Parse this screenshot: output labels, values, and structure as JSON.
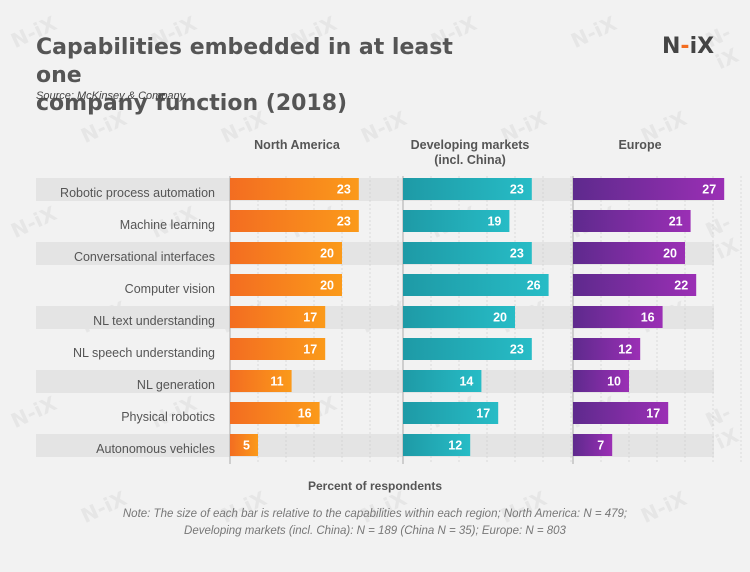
{
  "header": {
    "title_line1": "Capabilities embedded in at least one",
    "title_line2": "company function (2018)",
    "source": "Source: McKinsey & Company",
    "logo_left": "N",
    "logo_dash": "-",
    "logo_right": "iX"
  },
  "watermark_text": "N-iX",
  "colors": {
    "north_america": [
      "#f36d21",
      "#fb9a1a"
    ],
    "developing": [
      "#1e9aa6",
      "#27bcc6"
    ],
    "europe": [
      "#5e2a8d",
      "#9b2fb5"
    ],
    "row_band": "#e4e4e4",
    "grid": "#c8c8c8"
  },
  "chart_data": {
    "type": "bar",
    "title": "Capabilities embedded in at least one company function (2018)",
    "xlabel": "Percent of respondents",
    "categories": [
      "Robotic process automation",
      "Machine learning",
      "Conversational interfaces",
      "Computer vision",
      "NL text understanding",
      "NL speech understanding",
      "NL generation",
      "Physical robotics",
      "Autonomous vehicles"
    ],
    "series": [
      {
        "name": "North America",
        "values": [
          23,
          23,
          20,
          20,
          17,
          17,
          11,
          16,
          5
        ]
      },
      {
        "name": "Developing markets (incl. China)",
        "name_lines": [
          "Developing markets",
          "(incl. China)"
        ],
        "values": [
          23,
          19,
          23,
          26,
          20,
          23,
          14,
          17,
          12
        ]
      },
      {
        "name": "Europe",
        "values": [
          27,
          21,
          20,
          22,
          16,
          12,
          10,
          17,
          7
        ]
      }
    ],
    "xlim": [
      0,
      30
    ]
  },
  "footer": {
    "xlabel": "Percent of respondents",
    "note_line1": "Note: The size of each bar is relative to the capabilities within each region; North America: N = 479;",
    "note_line2": "Developing markets (incl. China): N = 189 (China N = 35); Europe: N = 803"
  }
}
